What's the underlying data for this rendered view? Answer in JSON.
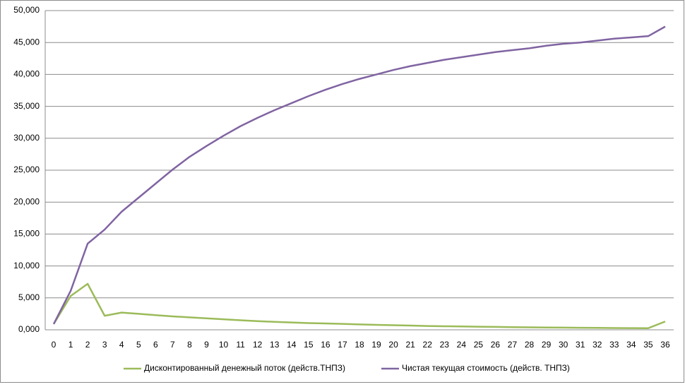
{
  "chart_data": {
    "type": "line",
    "categories": [
      "0",
      "1",
      "2",
      "3",
      "4",
      "5",
      "6",
      "7",
      "8",
      "9",
      "10",
      "11",
      "12",
      "13",
      "14",
      "15",
      "16",
      "17",
      "18",
      "19",
      "20",
      "21",
      "22",
      "23",
      "24",
      "25",
      "26",
      "27",
      "28",
      "29",
      "30",
      "31",
      "32",
      "33",
      "34",
      "35",
      "36"
    ],
    "series": [
      {
        "name": "Дисконтированный денежный поток (действ.ТНПЗ)",
        "color": "#9bbb59",
        "values": [
          900,
          5300,
          7200,
          2200,
          2700,
          2500,
          2300,
          2100,
          1950,
          1800,
          1650,
          1500,
          1350,
          1250,
          1150,
          1050,
          1000,
          920,
          850,
          780,
          720,
          660,
          600,
          560,
          520,
          480,
          450,
          420,
          390,
          360,
          340,
          320,
          300,
          270,
          260,
          250,
          1300
        ]
      },
      {
        "name": "Чистая текущая стоимость (действ. ТНПЗ)",
        "color": "#8064a2",
        "values": [
          900,
          6100,
          13500,
          15700,
          18500,
          20700,
          22900,
          25100,
          27100,
          28800,
          30400,
          31900,
          33200,
          34400,
          35500,
          36600,
          37600,
          38500,
          39300,
          40000,
          40700,
          41300,
          41800,
          42300,
          42700,
          43100,
          43500,
          43800,
          44100,
          44500,
          44800,
          45000,
          45300,
          45600,
          45800,
          46000,
          47500
        ]
      }
    ],
    "ylim": [
      0,
      50000
    ],
    "yticks": [
      {
        "value": 0,
        "label": "0,000"
      },
      {
        "value": 5000,
        "label": "5,000"
      },
      {
        "value": 10000,
        "label": "10,000"
      },
      {
        "value": 15000,
        "label": "15,000"
      },
      {
        "value": 20000,
        "label": "20,000"
      },
      {
        "value": 25000,
        "label": "25,000"
      },
      {
        "value": 30000,
        "label": "30,000"
      },
      {
        "value": 35000,
        "label": "35,000"
      },
      {
        "value": 40000,
        "label": "40,000"
      },
      {
        "value": 45000,
        "label": "45,000"
      },
      {
        "value": 50000,
        "label": "50,000"
      }
    ],
    "grid": true,
    "legend": "bottom"
  }
}
